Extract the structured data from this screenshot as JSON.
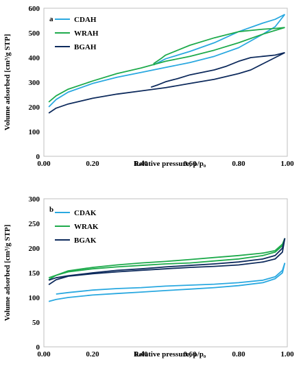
{
  "chart_data": [
    {
      "type": "line",
      "panel_label": "a",
      "xlabel": "Relative pressure, p/p₀",
      "ylabel": "Volume adsorbed [cm³/g STP]",
      "xlim": [
        0,
        1.0
      ],
      "ylim": [
        0,
        600
      ],
      "x_ticks": [
        "0.00",
        "0.20",
        "0.40",
        "0.60",
        "0.80",
        "1.00"
      ],
      "y_ticks": [
        "0",
        "100",
        "200",
        "300",
        "400",
        "500",
        "600"
      ],
      "legend_position": "top-left",
      "series": [
        {
          "name": "CDAH",
          "color": "#29a8e0",
          "adsorption": [
            [
              0.02,
              200
            ],
            [
              0.05,
              230
            ],
            [
              0.1,
              260
            ],
            [
              0.2,
              295
            ],
            [
              0.3,
              320
            ],
            [
              0.4,
              340
            ],
            [
              0.5,
              360
            ],
            [
              0.6,
              380
            ],
            [
              0.7,
              405
            ],
            [
              0.8,
              440
            ],
            [
              0.9,
              495
            ],
            [
              0.95,
              525
            ],
            [
              0.99,
              575
            ]
          ],
          "desorption": [
            [
              0.99,
              575
            ],
            [
              0.95,
              555
            ],
            [
              0.9,
              540
            ],
            [
              0.8,
              505
            ],
            [
              0.7,
              460
            ],
            [
              0.6,
              425
            ],
            [
              0.55,
              410
            ],
            [
              0.5,
              395
            ],
            [
              0.45,
              370
            ]
          ]
        },
        {
          "name": "WRAH",
          "color": "#1daa4b",
          "adsorption": [
            [
              0.02,
              220
            ],
            [
              0.05,
              245
            ],
            [
              0.1,
              272
            ],
            [
              0.2,
              305
            ],
            [
              0.3,
              335
            ],
            [
              0.4,
              358
            ],
            [
              0.5,
              385
            ],
            [
              0.6,
              405
            ],
            [
              0.7,
              430
            ],
            [
              0.8,
              460
            ],
            [
              0.9,
              495
            ],
            [
              0.95,
              510
            ],
            [
              0.99,
              522
            ]
          ],
          "desorption": [
            [
              0.99,
              522
            ],
            [
              0.95,
              518
            ],
            [
              0.9,
              515
            ],
            [
              0.8,
              505
            ],
            [
              0.7,
              480
            ],
            [
              0.6,
              450
            ],
            [
              0.55,
              430
            ],
            [
              0.5,
              410
            ],
            [
              0.48,
              395
            ],
            [
              0.45,
              375
            ]
          ]
        },
        {
          "name": "BGAH",
          "color": "#0d2a5c",
          "adsorption": [
            [
              0.02,
              175
            ],
            [
              0.05,
              195
            ],
            [
              0.1,
              212
            ],
            [
              0.2,
              235
            ],
            [
              0.3,
              252
            ],
            [
              0.4,
              265
            ],
            [
              0.5,
              278
            ],
            [
              0.6,
              295
            ],
            [
              0.7,
              312
            ],
            [
              0.8,
              335
            ],
            [
              0.85,
              350
            ],
            [
              0.9,
              375
            ],
            [
              0.95,
              400
            ],
            [
              0.99,
              420
            ]
          ],
          "desorption": [
            [
              0.99,
              420
            ],
            [
              0.95,
              410
            ],
            [
              0.9,
              405
            ],
            [
              0.85,
              400
            ],
            [
              0.8,
              385
            ],
            [
              0.75,
              365
            ],
            [
              0.7,
              350
            ],
            [
              0.6,
              330
            ],
            [
              0.55,
              315
            ],
            [
              0.5,
              302
            ],
            [
              0.47,
              290
            ],
            [
              0.44,
              280
            ]
          ]
        }
      ]
    },
    {
      "type": "line",
      "panel_label": "b",
      "xlabel": "Relative pressure, p/p₀",
      "ylabel": "Volume adsorbed [cm³/g STP]",
      "xlim": [
        0,
        1.0
      ],
      "ylim": [
        0,
        300
      ],
      "x_ticks": [
        "0.00",
        "0.20",
        "0.40",
        "0.60",
        "0.80",
        "1.00"
      ],
      "y_ticks": [
        "0",
        "50",
        "100",
        "150",
        "200",
        "250",
        "300"
      ],
      "legend_position": "top-left",
      "series": [
        {
          "name": "CDAK",
          "color": "#29a8e0",
          "adsorption": [
            [
              0.02,
              92
            ],
            [
              0.05,
              96
            ],
            [
              0.1,
              100
            ],
            [
              0.2,
              105
            ],
            [
              0.3,
              108
            ],
            [
              0.4,
              111
            ],
            [
              0.5,
              114
            ],
            [
              0.6,
              117
            ],
            [
              0.7,
              120
            ],
            [
              0.8,
              124
            ],
            [
              0.9,
              130
            ],
            [
              0.95,
              138
            ],
            [
              0.98,
              150
            ],
            [
              0.99,
              170
            ]
          ],
          "desorption": [
            [
              0.99,
              170
            ],
            [
              0.98,
              155
            ],
            [
              0.95,
              142
            ],
            [
              0.9,
              135
            ],
            [
              0.8,
              130
            ],
            [
              0.7,
              127
            ],
            [
              0.6,
              125
            ],
            [
              0.5,
              123
            ],
            [
              0.4,
              120
            ],
            [
              0.3,
              118
            ],
            [
              0.2,
              115
            ],
            [
              0.1,
              110
            ],
            [
              0.05,
              107
            ]
          ]
        },
        {
          "name": "WRAK",
          "color": "#1daa4b",
          "adsorption": [
            [
              0.02,
              136
            ],
            [
              0.05,
              145
            ],
            [
              0.1,
              152
            ],
            [
              0.2,
              158
            ],
            [
              0.3,
              162
            ],
            [
              0.4,
              165
            ],
            [
              0.5,
              168
            ],
            [
              0.6,
              170
            ],
            [
              0.7,
              174
            ],
            [
              0.8,
              178
            ],
            [
              0.9,
              185
            ],
            [
              0.95,
              192
            ],
            [
              0.98,
              205
            ],
            [
              0.99,
              220
            ]
          ],
          "desorption": [
            [
              0.99,
              220
            ],
            [
              0.98,
              208
            ],
            [
              0.95,
              195
            ],
            [
              0.9,
              190
            ],
            [
              0.8,
              185
            ],
            [
              0.7,
              181
            ],
            [
              0.6,
              177
            ],
            [
              0.5,
              173
            ],
            [
              0.4,
              170
            ],
            [
              0.3,
              166
            ],
            [
              0.2,
              161
            ],
            [
              0.1,
              154
            ],
            [
              0.05,
              145
            ],
            [
              0.02,
              140
            ]
          ]
        },
        {
          "name": "BGAK",
          "color": "#0d2a5c",
          "adsorption": [
            [
              0.02,
              126
            ],
            [
              0.05,
              136
            ],
            [
              0.1,
              143
            ],
            [
              0.2,
              148
            ],
            [
              0.3,
              152
            ],
            [
              0.4,
              155
            ],
            [
              0.5,
              158
            ],
            [
              0.6,
              161
            ],
            [
              0.7,
              163
            ],
            [
              0.8,
              166
            ],
            [
              0.9,
              172
            ],
            [
              0.95,
              178
            ],
            [
              0.98,
              192
            ],
            [
              0.99,
              220
            ]
          ],
          "desorption": [
            [
              0.99,
              220
            ],
            [
              0.98,
              200
            ],
            [
              0.95,
              185
            ],
            [
              0.9,
              178
            ],
            [
              0.8,
              172
            ],
            [
              0.7,
              168
            ],
            [
              0.6,
              165
            ],
            [
              0.5,
              162
            ],
            [
              0.4,
              158
            ],
            [
              0.3,
              155
            ],
            [
              0.2,
              150
            ],
            [
              0.1,
              144
            ],
            [
              0.05,
              140
            ],
            [
              0.02,
              135
            ]
          ]
        }
      ]
    }
  ]
}
